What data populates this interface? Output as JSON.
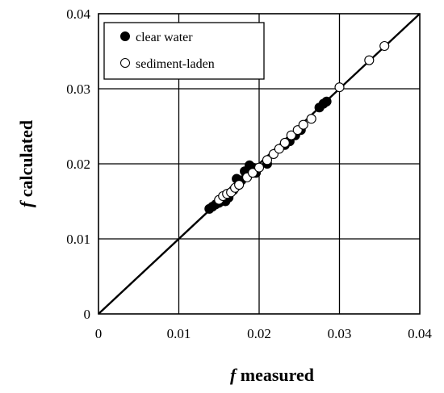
{
  "chart_data": {
    "type": "scatter",
    "xlim": [
      0,
      0.04
    ],
    "ylim": [
      0,
      0.04
    ],
    "x_ticks": [
      "0",
      "0.01",
      "0.02",
      "0.03",
      "0.04"
    ],
    "y_ticks": [
      "0",
      "0.01",
      "0.02",
      "0.03",
      "0.04"
    ],
    "xlabel": {
      "symbol": "f",
      "text": " measured"
    },
    "ylabel": {
      "symbol": "f",
      "text": " calculated"
    },
    "grid": true,
    "legend_position": "top-left",
    "reference_line": {
      "x": [
        0,
        0.04
      ],
      "y": [
        0,
        0.04
      ]
    },
    "series": [
      {
        "name": "clear water",
        "marker": "filled-circle",
        "color": "#000000",
        "points": [
          [
            0.0138,
            0.014
          ],
          [
            0.0142,
            0.0143
          ],
          [
            0.0146,
            0.0146
          ],
          [
            0.015,
            0.0148
          ],
          [
            0.0158,
            0.015
          ],
          [
            0.0162,
            0.0155
          ],
          [
            0.0168,
            0.0165
          ],
          [
            0.0172,
            0.018
          ],
          [
            0.0178,
            0.0178
          ],
          [
            0.0182,
            0.019
          ],
          [
            0.0188,
            0.0198
          ],
          [
            0.0192,
            0.0195
          ],
          [
            0.0196,
            0.0188
          ],
          [
            0.021,
            0.02
          ],
          [
            0.0232,
            0.0225
          ],
          [
            0.0238,
            0.023
          ],
          [
            0.0245,
            0.0238
          ],
          [
            0.0252,
            0.0245
          ],
          [
            0.0275,
            0.0275
          ],
          [
            0.028,
            0.028
          ],
          [
            0.0284,
            0.0283
          ]
        ]
      },
      {
        "name": "sediment-laden",
        "marker": "open-circle",
        "color": "#000000",
        "points": [
          [
            0.015,
            0.0152
          ],
          [
            0.0155,
            0.0157
          ],
          [
            0.016,
            0.016
          ],
          [
            0.0165,
            0.0162
          ],
          [
            0.017,
            0.0168
          ],
          [
            0.0175,
            0.0172
          ],
          [
            0.0185,
            0.0182
          ],
          [
            0.0192,
            0.0188
          ],
          [
            0.02,
            0.0195
          ],
          [
            0.021,
            0.0205
          ],
          [
            0.0218,
            0.0213
          ],
          [
            0.0225,
            0.022
          ],
          [
            0.0232,
            0.0228
          ],
          [
            0.024,
            0.0238
          ],
          [
            0.0248,
            0.0245
          ],
          [
            0.0255,
            0.0252
          ],
          [
            0.0265,
            0.026
          ],
          [
            0.03,
            0.0302
          ],
          [
            0.0337,
            0.0338
          ],
          [
            0.0356,
            0.0357
          ]
        ]
      }
    ]
  }
}
